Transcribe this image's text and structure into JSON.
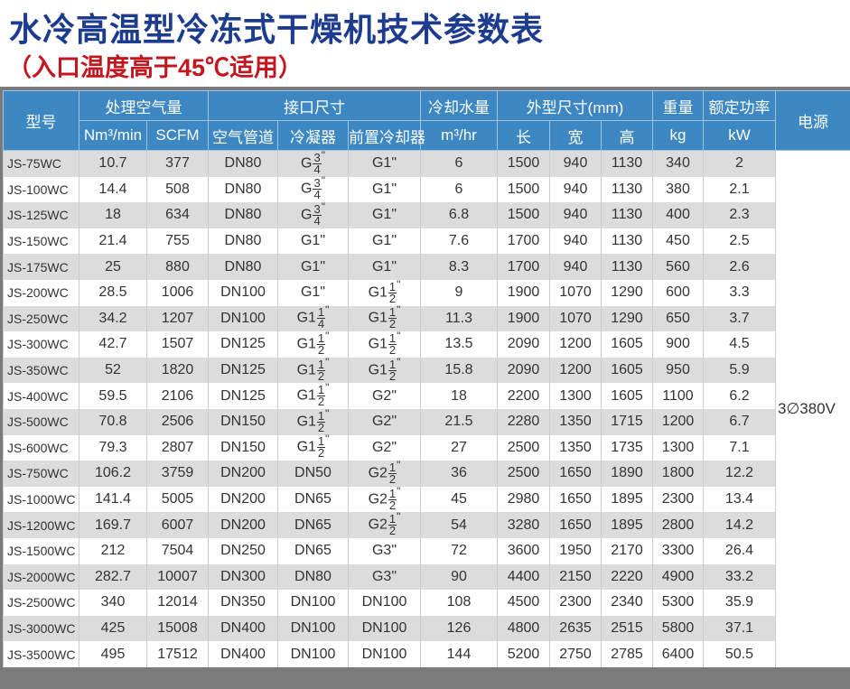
{
  "title": "水冷高温型冷冻式干燥机技术参数表",
  "subtitle": "（入口温度高于45℃适用）",
  "header": {
    "model": "型号",
    "flow": "处理空气量",
    "ports": "接口尺寸",
    "water": "冷却水量",
    "dims": "外型尺寸(mm)",
    "weight": "重量",
    "rated_power": "额定功率",
    "power": "电源",
    "nm3": "Nm³/min",
    "scfm": "SCFM",
    "air_pipe": "空气管道",
    "condenser": "冷凝器",
    "precooler": "前置冷却器",
    "m3hr": "m³/hr",
    "length": "长",
    "width": "宽",
    "height": "高",
    "kg": "kg",
    "kw": "kW"
  },
  "power_value": "3∅380V",
  "rows": [
    {
      "model": "JS-75WC",
      "nm3": "10.7",
      "scfm": "377",
      "pipe": "DN80",
      "cond": {
        "w": "G",
        "n": "3",
        "d": "4"
      },
      "pre": {
        "t": "G1\""
      },
      "water": "6",
      "l": "1500",
      "wd": "940",
      "h": "1130",
      "kg": "340",
      "kw": "2"
    },
    {
      "model": "JS-100WC",
      "nm3": "14.4",
      "scfm": "508",
      "pipe": "DN80",
      "cond": {
        "w": "G",
        "n": "3",
        "d": "4"
      },
      "pre": {
        "t": "G1\""
      },
      "water": "6",
      "l": "1500",
      "wd": "940",
      "h": "1130",
      "kg": "380",
      "kw": "2.1"
    },
    {
      "model": "JS-125WC",
      "nm3": "18",
      "scfm": "634",
      "pipe": "DN80",
      "cond": {
        "w": "G",
        "n": "3",
        "d": "4"
      },
      "pre": {
        "t": "G1\""
      },
      "water": "6.8",
      "l": "1500",
      "wd": "940",
      "h": "1130",
      "kg": "400",
      "kw": "2.3"
    },
    {
      "model": "JS-150WC",
      "nm3": "21.4",
      "scfm": "755",
      "pipe": "DN80",
      "cond": {
        "t": "G1\""
      },
      "pre": {
        "t": "G1\""
      },
      "water": "7.6",
      "l": "1700",
      "wd": "940",
      "h": "1130",
      "kg": "450",
      "kw": "2.5"
    },
    {
      "model": "JS-175WC",
      "nm3": "25",
      "scfm": "880",
      "pipe": "DN80",
      "cond": {
        "t": "G1\""
      },
      "pre": {
        "t": "G1\""
      },
      "water": "8.3",
      "l": "1700",
      "wd": "940",
      "h": "1130",
      "kg": "560",
      "kw": "2.6"
    },
    {
      "model": "JS-200WC",
      "nm3": "28.5",
      "scfm": "1006",
      "pipe": "DN100",
      "cond": {
        "t": "G1\""
      },
      "pre": {
        "w": "G1",
        "n": "1",
        "d": "2"
      },
      "water": "9",
      "l": "1900",
      "wd": "1070",
      "h": "1290",
      "kg": "600",
      "kw": "3.3"
    },
    {
      "model": "JS-250WC",
      "nm3": "34.2",
      "scfm": "1207",
      "pipe": "DN100",
      "cond": {
        "w": "G1",
        "n": "1",
        "d": "4"
      },
      "pre": {
        "w": "G1",
        "n": "1",
        "d": "2"
      },
      "water": "11.3",
      "l": "1900",
      "wd": "1070",
      "h": "1290",
      "kg": "650",
      "kw": "3.7"
    },
    {
      "model": "JS-300WC",
      "nm3": "42.7",
      "scfm": "1507",
      "pipe": "DN125",
      "cond": {
        "w": "G1",
        "n": "1",
        "d": "2"
      },
      "pre": {
        "w": "G1",
        "n": "1",
        "d": "2"
      },
      "water": "13.5",
      "l": "2090",
      "wd": "1200",
      "h": "1605",
      "kg": "900",
      "kw": "4.5"
    },
    {
      "model": "JS-350WC",
      "nm3": "52",
      "scfm": "1820",
      "pipe": "DN125",
      "cond": {
        "w": "G1",
        "n": "1",
        "d": "2"
      },
      "pre": {
        "w": "G1",
        "n": "1",
        "d": "2"
      },
      "water": "15.8",
      "l": "2090",
      "wd": "1200",
      "h": "1605",
      "kg": "950",
      "kw": "5.9"
    },
    {
      "model": "JS-400WC",
      "nm3": "59.5",
      "scfm": "2106",
      "pipe": "DN125",
      "cond": {
        "w": "G1",
        "n": "1",
        "d": "2"
      },
      "pre": {
        "t": "G2\""
      },
      "water": "18",
      "l": "2200",
      "wd": "1300",
      "h": "1605",
      "kg": "1100",
      "kw": "6.2"
    },
    {
      "model": "JS-500WC",
      "nm3": "70.8",
      "scfm": "2506",
      "pipe": "DN150",
      "cond": {
        "w": "G1",
        "n": "1",
        "d": "2"
      },
      "pre": {
        "t": "G2\""
      },
      "water": "21.5",
      "l": "2280",
      "wd": "1350",
      "h": "1715",
      "kg": "1200",
      "kw": "6.7"
    },
    {
      "model": "JS-600WC",
      "nm3": "79.3",
      "scfm": "2807",
      "pipe": "DN150",
      "cond": {
        "w": "G1",
        "n": "1",
        "d": "2"
      },
      "pre": {
        "t": "G2\""
      },
      "water": "27",
      "l": "2500",
      "wd": "1350",
      "h": "1735",
      "kg": "1300",
      "kw": "7.1"
    },
    {
      "model": "JS-750WC",
      "nm3": "106.2",
      "scfm": "3759",
      "pipe": "DN200",
      "cond": {
        "t": "DN50"
      },
      "pre": {
        "w": "G2",
        "n": "1",
        "d": "2"
      },
      "water": "36",
      "l": "2500",
      "wd": "1650",
      "h": "1890",
      "kg": "1800",
      "kw": "12.2"
    },
    {
      "model": "JS-1000WC",
      "nm3": "141.4",
      "scfm": "5005",
      "pipe": "DN200",
      "cond": {
        "t": "DN65"
      },
      "pre": {
        "w": "G2",
        "n": "1",
        "d": "2"
      },
      "water": "45",
      "l": "2980",
      "wd": "1650",
      "h": "1895",
      "kg": "2300",
      "kw": "13.4"
    },
    {
      "model": "JS-1200WC",
      "nm3": "169.7",
      "scfm": "6007",
      "pipe": "DN200",
      "cond": {
        "t": "DN65"
      },
      "pre": {
        "w": "G2",
        "n": "1",
        "d": "2"
      },
      "water": "54",
      "l": "3280",
      "wd": "1650",
      "h": "1895",
      "kg": "2800",
      "kw": "14.2"
    },
    {
      "model": "JS-1500WC",
      "nm3": "212",
      "scfm": "7504",
      "pipe": "DN250",
      "cond": {
        "t": "DN65"
      },
      "pre": {
        "t": "G3\""
      },
      "water": "72",
      "l": "3600",
      "wd": "1950",
      "h": "2170",
      "kg": "3300",
      "kw": "26.4"
    },
    {
      "model": "JS-2000WC",
      "nm3": "282.7",
      "scfm": "10007",
      "pipe": "DN300",
      "cond": {
        "t": "DN80"
      },
      "pre": {
        "t": "G3\""
      },
      "water": "90",
      "l": "4400",
      "wd": "2150",
      "h": "2220",
      "kg": "4900",
      "kw": "33.2"
    },
    {
      "model": "JS-2500WC",
      "nm3": "340",
      "scfm": "12014",
      "pipe": "DN350",
      "cond": {
        "t": "DN100"
      },
      "pre": {
        "t": "DN100"
      },
      "water": "108",
      "l": "4500",
      "wd": "2300",
      "h": "2340",
      "kg": "5300",
      "kw": "35.9"
    },
    {
      "model": "JS-3000WC",
      "nm3": "425",
      "scfm": "15008",
      "pipe": "DN400",
      "cond": {
        "t": "DN100"
      },
      "pre": {
        "t": "DN100"
      },
      "water": "126",
      "l": "4800",
      "wd": "2635",
      "h": "2515",
      "kg": "5800",
      "kw": "37.1"
    },
    {
      "model": "JS-3500WC",
      "nm3": "495",
      "scfm": "17512",
      "pipe": "DN400",
      "cond": {
        "t": "DN100"
      },
      "pre": {
        "t": "DN100"
      },
      "water": "144",
      "l": "5200",
      "wd": "2750",
      "h": "2785",
      "kg": "6400",
      "kw": "50.5"
    }
  ]
}
